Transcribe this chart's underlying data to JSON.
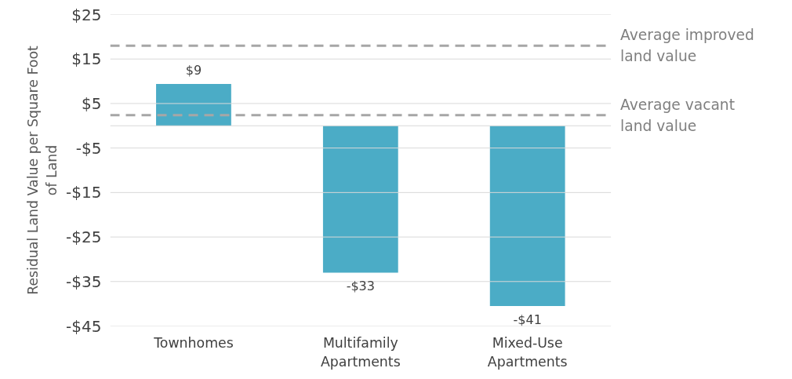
{
  "chart_data": {
    "type": "bar",
    "ylabel": "Residual Land Value per Square Foot of Land",
    "categories": [
      "Townhomes",
      "Multifamily Apartments",
      "Mixed-Use Apartments"
    ],
    "values": [
      9.4,
      -33,
      -40.5
    ],
    "value_labels": [
      "$9",
      "-$33",
      "-$41"
    ],
    "color": "#4bacc6",
    "ylim": [
      -45,
      25
    ],
    "yticks": [
      {
        "value": 25,
        "label": "$25"
      },
      {
        "value": 15,
        "label": "$15"
      },
      {
        "value": 5,
        "label": "$5"
      },
      {
        "value": -5,
        "label": "-$5"
      },
      {
        "value": -15,
        "label": "-$15"
      },
      {
        "value": -25,
        "label": "-$25"
      },
      {
        "value": -35,
        "label": "-$35"
      },
      {
        "value": -45,
        "label": "-$45"
      }
    ],
    "grid": "y",
    "ref_lines": [
      {
        "axis": "y",
        "value": 18,
        "label": "Average improved land value",
        "color": "#a6a6a6",
        "line_style": "dashed"
      },
      {
        "axis": "y",
        "value": 2.4,
        "label": "Average vacant land value",
        "color": "#a6a6a6",
        "line_style": "dashed"
      }
    ]
  }
}
